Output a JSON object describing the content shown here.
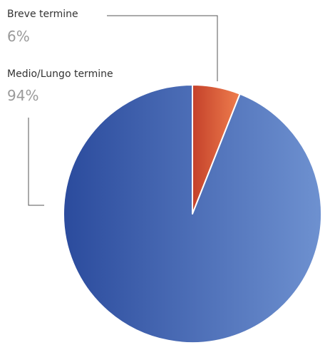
{
  "chart_data": {
    "type": "pie",
    "categories": [
      "Breve termine",
      "Medio/Lungo termine"
    ],
    "values": [
      6,
      94
    ],
    "value_labels": [
      "6%",
      "94%"
    ],
    "colors": [
      [
        "#c4412a",
        "#ef7e4e"
      ],
      [
        "#2b4b9d",
        "#6e91d0"
      ]
    ]
  }
}
